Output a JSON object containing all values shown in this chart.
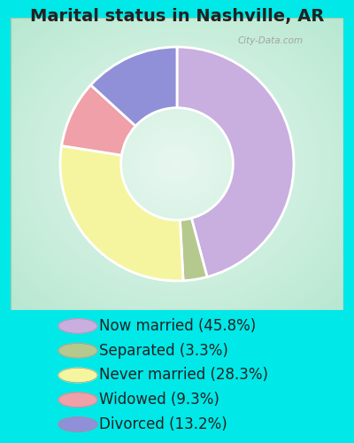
{
  "title": "Marital status in Nashville, AR",
  "slices": [
    45.8,
    3.3,
    28.3,
    9.3,
    13.2
  ],
  "labels": [
    "Now married (45.8%)",
    "Separated (3.3%)",
    "Never married (28.3%)",
    "Widowed (9.3%)",
    "Divorced (13.2%)"
  ],
  "colors": [
    "#c9aee0",
    "#b5c98e",
    "#f5f5a0",
    "#f0a0a8",
    "#9090d8"
  ],
  "background_color": "#00e8e8",
  "title_fontsize": 14,
  "legend_fontsize": 12,
  "watermark": "City-Data.com",
  "chart_border_color": "#ccddcc",
  "donut_width": 0.52
}
